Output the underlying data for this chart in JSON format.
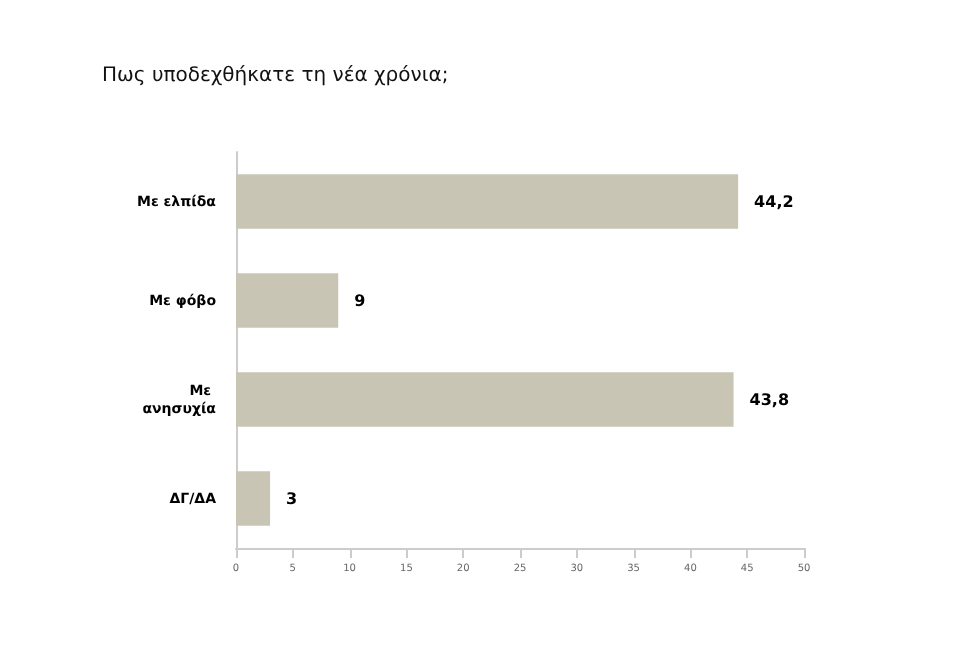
{
  "chart_data": {
    "type": "bar",
    "orientation": "horizontal",
    "title": "Πως υποδεχθήκατε τη νέα χρόνια;",
    "categories": [
      "Με ελπίδα",
      "Με φόβο",
      "Με ανησυχία",
      "ΔΓ/ΔΑ"
    ],
    "values": [
      44.2,
      9,
      43.8,
      3
    ],
    "color": "#c9c5b5",
    "value_labels": [
      "44,2",
      "9",
      "43,8",
      "3"
    ],
    "xlim": [
      0,
      50
    ],
    "xticks": [
      0,
      5,
      10,
      15,
      20,
      25,
      30,
      35,
      40,
      45,
      50
    ],
    "grid": false
  }
}
